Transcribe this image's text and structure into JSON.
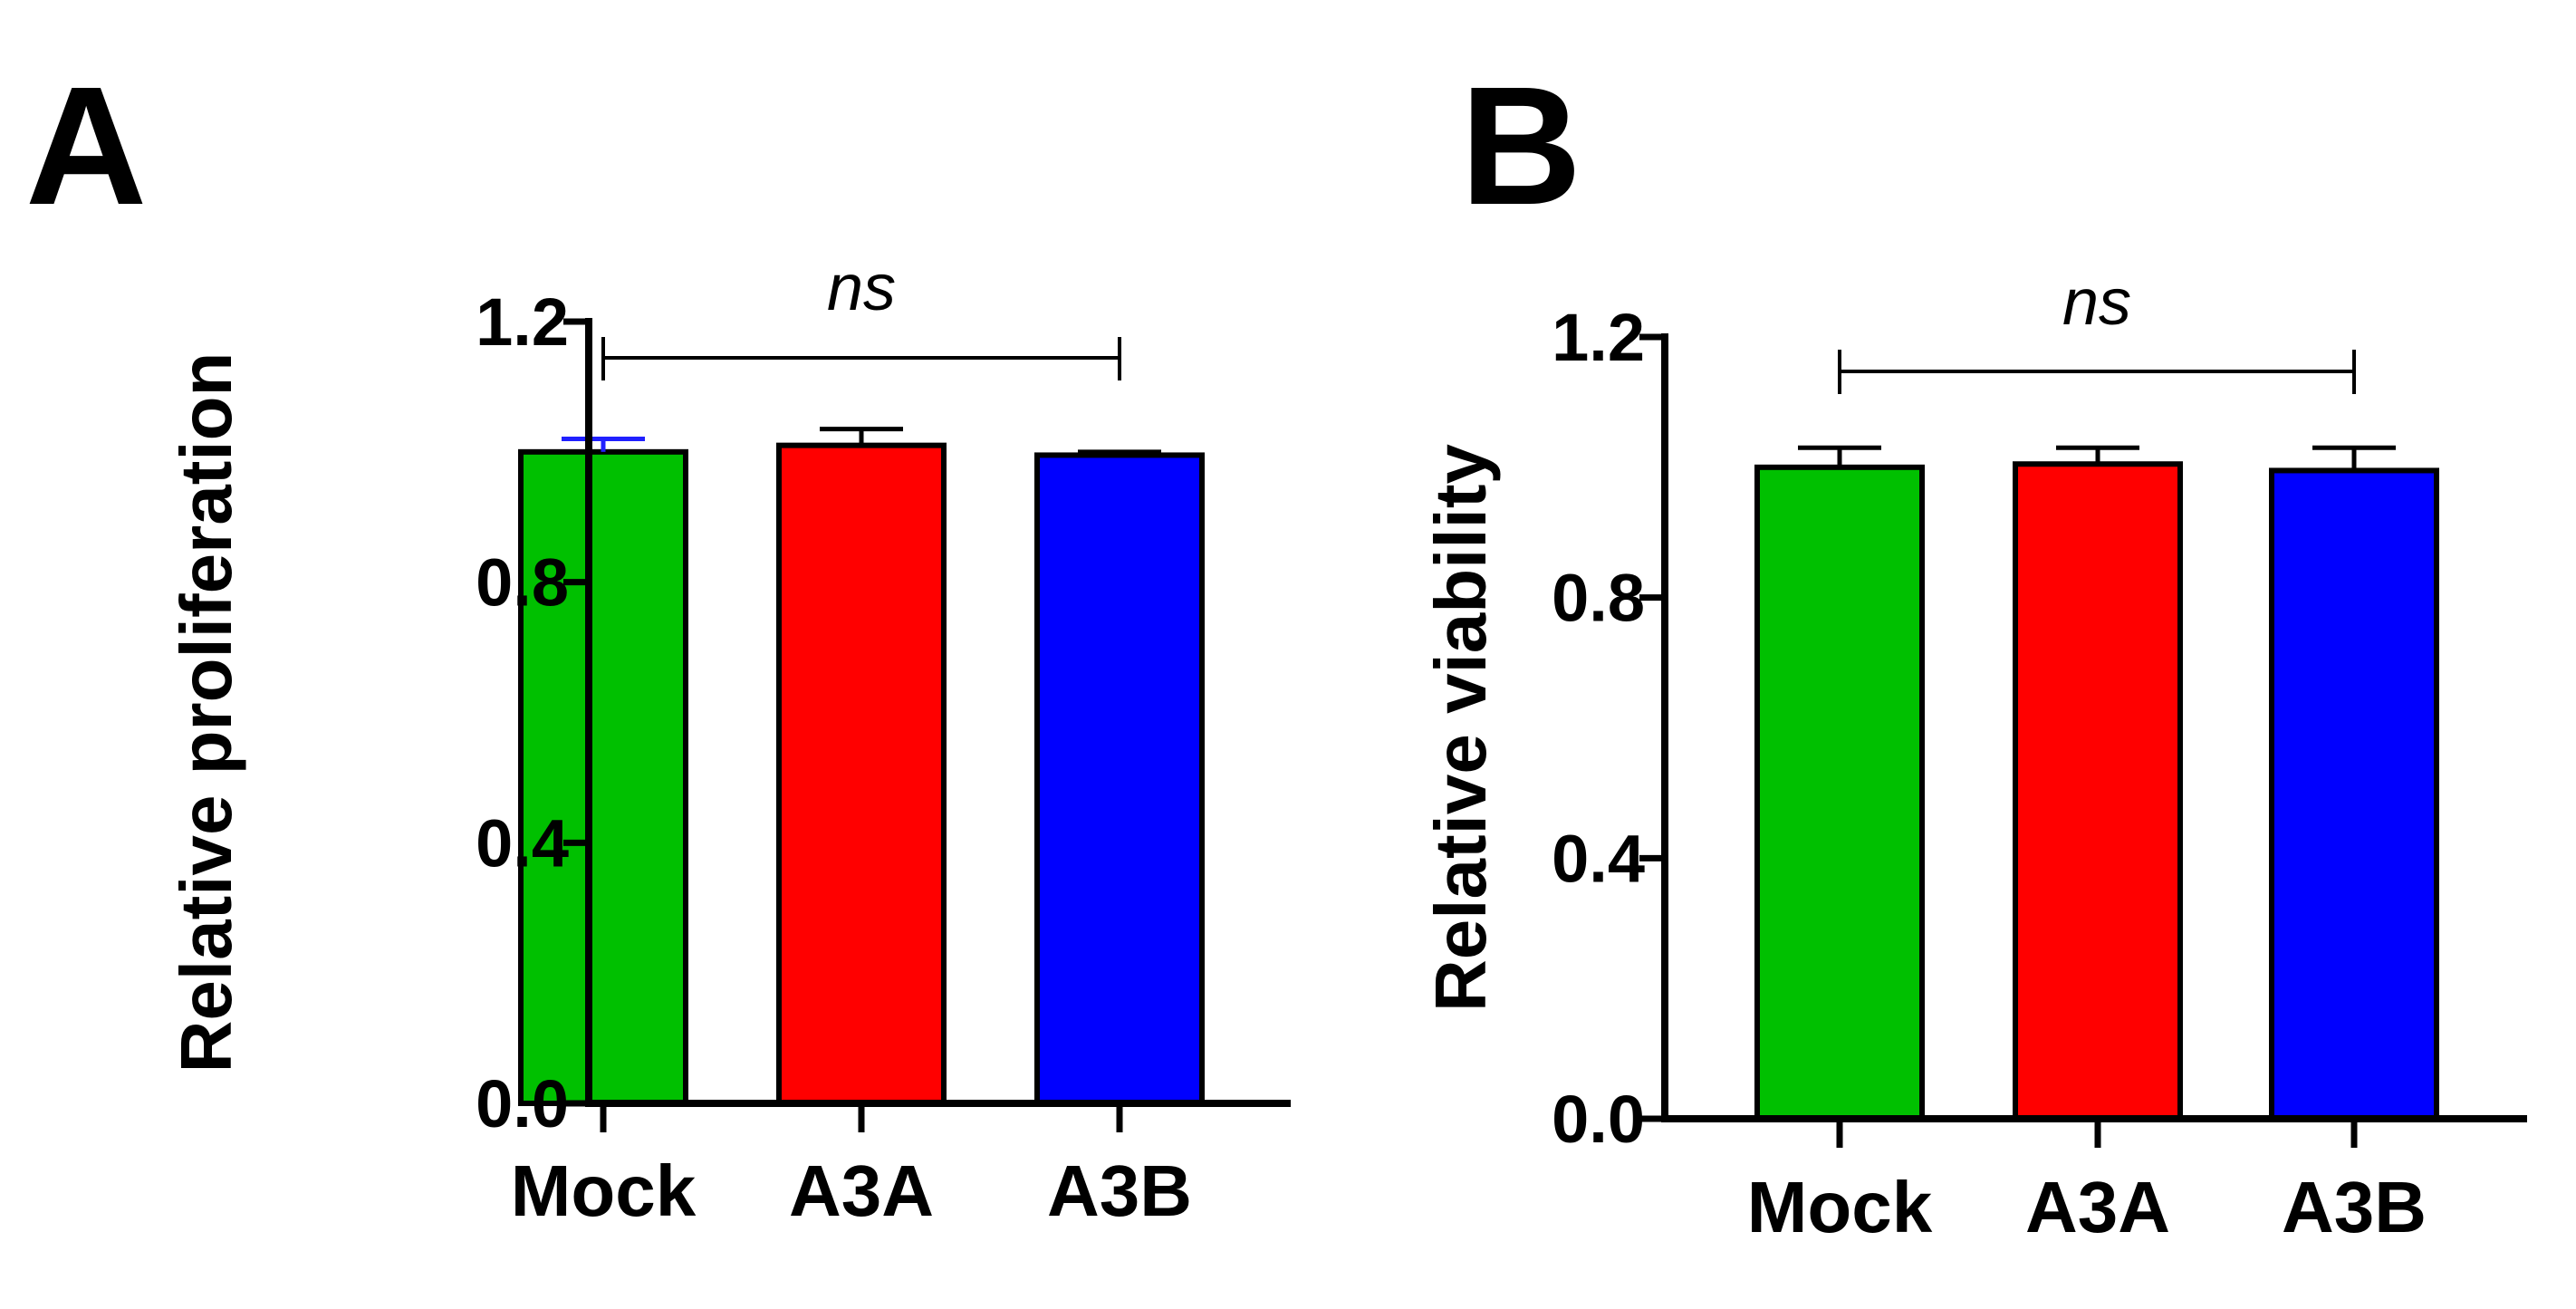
{
  "chart_data": [
    {
      "type": "bar",
      "panel": "A",
      "title": "",
      "xlabel": "",
      "ylabel": "Relative proliferation",
      "ylim": [
        0,
        1.2
      ],
      "yticks": [
        "0.0",
        "0.4",
        "0.8",
        "1.2"
      ],
      "categories": [
        "Mock",
        "A3A",
        "A3B"
      ],
      "values": [
        1.0,
        1.01,
        0.995
      ],
      "errors": [
        0.02,
        0.025,
        0.005
      ],
      "colors": [
        "#00c000",
        "#ff0000",
        "#0000ff"
      ],
      "error_colors": [
        "#2020ff",
        "#000000",
        "#000000"
      ],
      "significance": {
        "label": "ns",
        "from": "Mock",
        "to": "A3B"
      }
    },
    {
      "type": "bar",
      "panel": "B",
      "title": "",
      "xlabel": "",
      "ylabel": "Relative viability",
      "ylim": [
        0,
        1.2
      ],
      "yticks": [
        "0.0",
        "0.4",
        "0.8",
        "1.2"
      ],
      "categories": [
        "Mock",
        "A3A",
        "A3B"
      ],
      "values": [
        1.0,
        1.005,
        0.995
      ],
      "errors": [
        0.03,
        0.025,
        0.035
      ],
      "colors": [
        "#00c000",
        "#ff0000",
        "#0000ff"
      ],
      "error_colors": [
        "#000000",
        "#000000",
        "#000000"
      ],
      "significance": {
        "label": "ns",
        "from": "Mock",
        "to": "A3B"
      }
    }
  ]
}
